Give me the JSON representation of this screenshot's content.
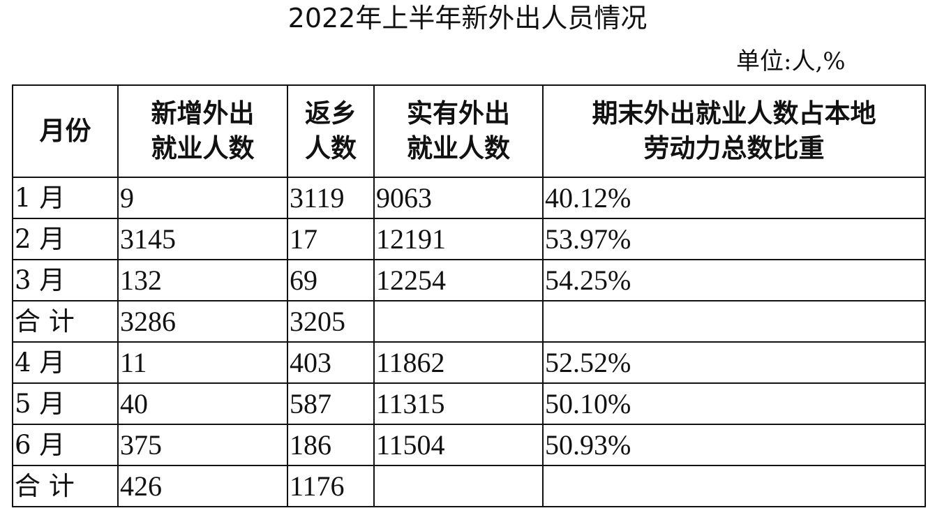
{
  "title": "2022年上半年新外出人员情况",
  "unit": "单位:人,%",
  "table": {
    "headers": [
      [
        "月份"
      ],
      [
        "新增外出",
        "就业人数"
      ],
      [
        "返乡",
        "人数"
      ],
      [
        "实有外出",
        "就业人数"
      ],
      [
        "期末外出就业人数占本地",
        "劳动力总数比重"
      ]
    ],
    "rows": [
      [
        "1 月",
        "9",
        "3119",
        "9063",
        "40.12%"
      ],
      [
        "2 月",
        "3145",
        "17",
        "12191",
        "53.97%"
      ],
      [
        "3 月",
        "132",
        "69",
        "12254",
        "54.25%"
      ],
      [
        "合 计",
        "3286",
        "3205",
        "",
        ""
      ],
      [
        "4 月",
        "11",
        "403",
        "11862",
        "52.52%"
      ],
      [
        "5 月",
        "40",
        "587",
        "11315",
        "50.10%"
      ],
      [
        "6 月",
        "375",
        "186",
        "11504",
        "50.93%"
      ],
      [
        "合 计",
        "426",
        "1176",
        "",
        ""
      ]
    ]
  }
}
